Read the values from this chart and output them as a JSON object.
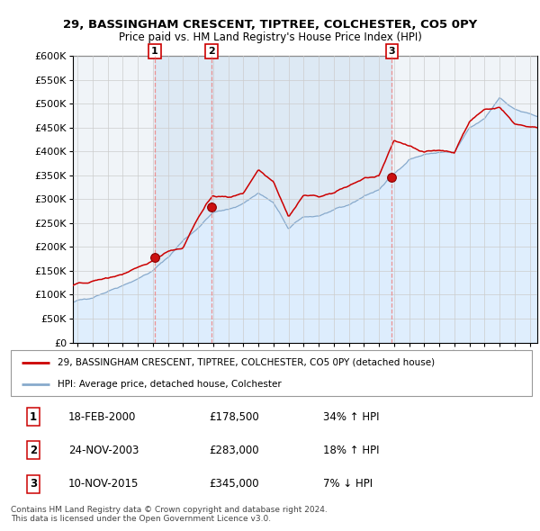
{
  "title": "29, BASSINGHAM CRESCENT, TIPTREE, COLCHESTER, CO5 0PY",
  "subtitle": "Price paid vs. HM Land Registry's House Price Index (HPI)",
  "ylim": [
    0,
    600000
  ],
  "yticks": [
    0,
    50000,
    100000,
    150000,
    200000,
    250000,
    300000,
    350000,
    400000,
    450000,
    500000,
    550000,
    600000
  ],
  "xlim_start": 1994.7,
  "xlim_end": 2025.5,
  "sale_color": "#cc0000",
  "hpi_color": "#88aacc",
  "hpi_fill_color": "#ddeeff",
  "dashed_line_color": "#ee8888",
  "grid_color": "#cccccc",
  "sales": [
    {
      "date_year": 2000.13,
      "price": 178500,
      "label": "1"
    },
    {
      "date_year": 2003.9,
      "price": 283000,
      "label": "2"
    },
    {
      "date_year": 2015.86,
      "price": 345000,
      "label": "3"
    }
  ],
  "legend_line1": "29, BASSINGHAM CRESCENT, TIPTREE, COLCHESTER, CO5 0PY (detached house)",
  "legend_line2": "HPI: Average price, detached house, Colchester",
  "table_rows": [
    {
      "num": "1",
      "date": "18-FEB-2000",
      "price": "£178,500",
      "change": "34% ↑ HPI"
    },
    {
      "num": "2",
      "date": "24-NOV-2003",
      "price": "£283,000",
      "change": "18% ↑ HPI"
    },
    {
      "num": "3",
      "date": "10-NOV-2015",
      "price": "£345,000",
      "change": "7% ↓ HPI"
    }
  ],
  "footer": "Contains HM Land Registry data © Crown copyright and database right 2024.\nThis data is licensed under the Open Government Licence v3.0.",
  "hpi_key_years": [
    1994.7,
    1995,
    1996,
    1997,
    1998,
    1999,
    2000,
    2001,
    2002,
    2003,
    2004,
    2005,
    2006,
    2007,
    2008,
    2009,
    2010,
    2011,
    2012,
    2013,
    2014,
    2015,
    2016,
    2017,
    2018,
    2019,
    2020,
    2021,
    2022,
    2023,
    2024,
    2025.5
  ],
  "hpi_key_values": [
    83000,
    87000,
    95000,
    107000,
    120000,
    133000,
    150000,
    178000,
    213000,
    240000,
    272000,
    278000,
    291000,
    313000,
    292000,
    238000,
    263000,
    265000,
    276000,
    288000,
    306000,
    320000,
    353000,
    383000,
    393000,
    398000,
    398000,
    448000,
    468000,
    513000,
    488000,
    473000
  ],
  "pp_key_years": [
    1994.7,
    1995,
    1996,
    1997,
    1998,
    1999,
    2000,
    2001,
    2002,
    2003,
    2004,
    2005,
    2006,
    2007,
    2008,
    2009,
    2010,
    2011,
    2012,
    2013,
    2014,
    2015,
    2016,
    2017,
    2018,
    2019,
    2020,
    2021,
    2022,
    2023,
    2024,
    2025.5
  ],
  "pp_key_values": [
    118000,
    122000,
    128000,
    135000,
    143000,
    155000,
    172000,
    192000,
    198000,
    262000,
    308000,
    303000,
    313000,
    362000,
    338000,
    263000,
    308000,
    306000,
    313000,
    328000,
    343000,
    348000,
    422000,
    413000,
    398000,
    403000,
    398000,
    462000,
    488000,
    492000,
    458000,
    448000
  ]
}
